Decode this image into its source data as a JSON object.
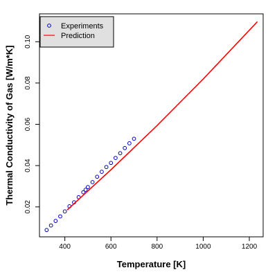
{
  "chart_data": {
    "type": "scatter",
    "xlabel": "Temperature [K]",
    "ylabel": "Thermal Conductivity of Gas [W/m*K]",
    "xlim": [
      290,
      1260
    ],
    "ylim": [
      0.0055,
      0.1135
    ],
    "x_ticks": [
      400,
      600,
      800,
      1000,
      1200
    ],
    "x_tick_labels": [
      "400",
      "600",
      "800",
      "1000",
      "1200"
    ],
    "y_ticks": [
      0.02,
      0.04,
      0.06,
      0.08,
      0.1
    ],
    "y_tick_labels": [
      "0.02",
      "0.04",
      "0.06",
      "0.08",
      "0.10"
    ],
    "grid": false,
    "legend_position": "top-left",
    "series": [
      {
        "name": "Experiments",
        "kind": "points",
        "color": "#0000CC",
        "x": [
          321,
          340,
          360,
          380,
          400,
          420,
          440,
          460,
          480,
          490,
          500,
          520,
          540,
          560,
          580,
          600,
          620,
          640,
          660,
          680,
          700
        ],
        "y": [
          0.0088,
          0.011,
          0.0132,
          0.0154,
          0.0178,
          0.0203,
          0.0222,
          0.0247,
          0.0271,
          0.0283,
          0.0296,
          0.032,
          0.0346,
          0.037,
          0.0393,
          0.0413,
          0.0437,
          0.046,
          0.0485,
          0.0508,
          0.053
        ]
      },
      {
        "name": "Prediction",
        "kind": "line",
        "color": "#FF0000",
        "x": [
          410,
          600,
          800,
          1000,
          1235
        ],
        "y": [
          0.0185,
          0.038,
          0.0594,
          0.0819,
          0.1097
        ]
      }
    ]
  }
}
